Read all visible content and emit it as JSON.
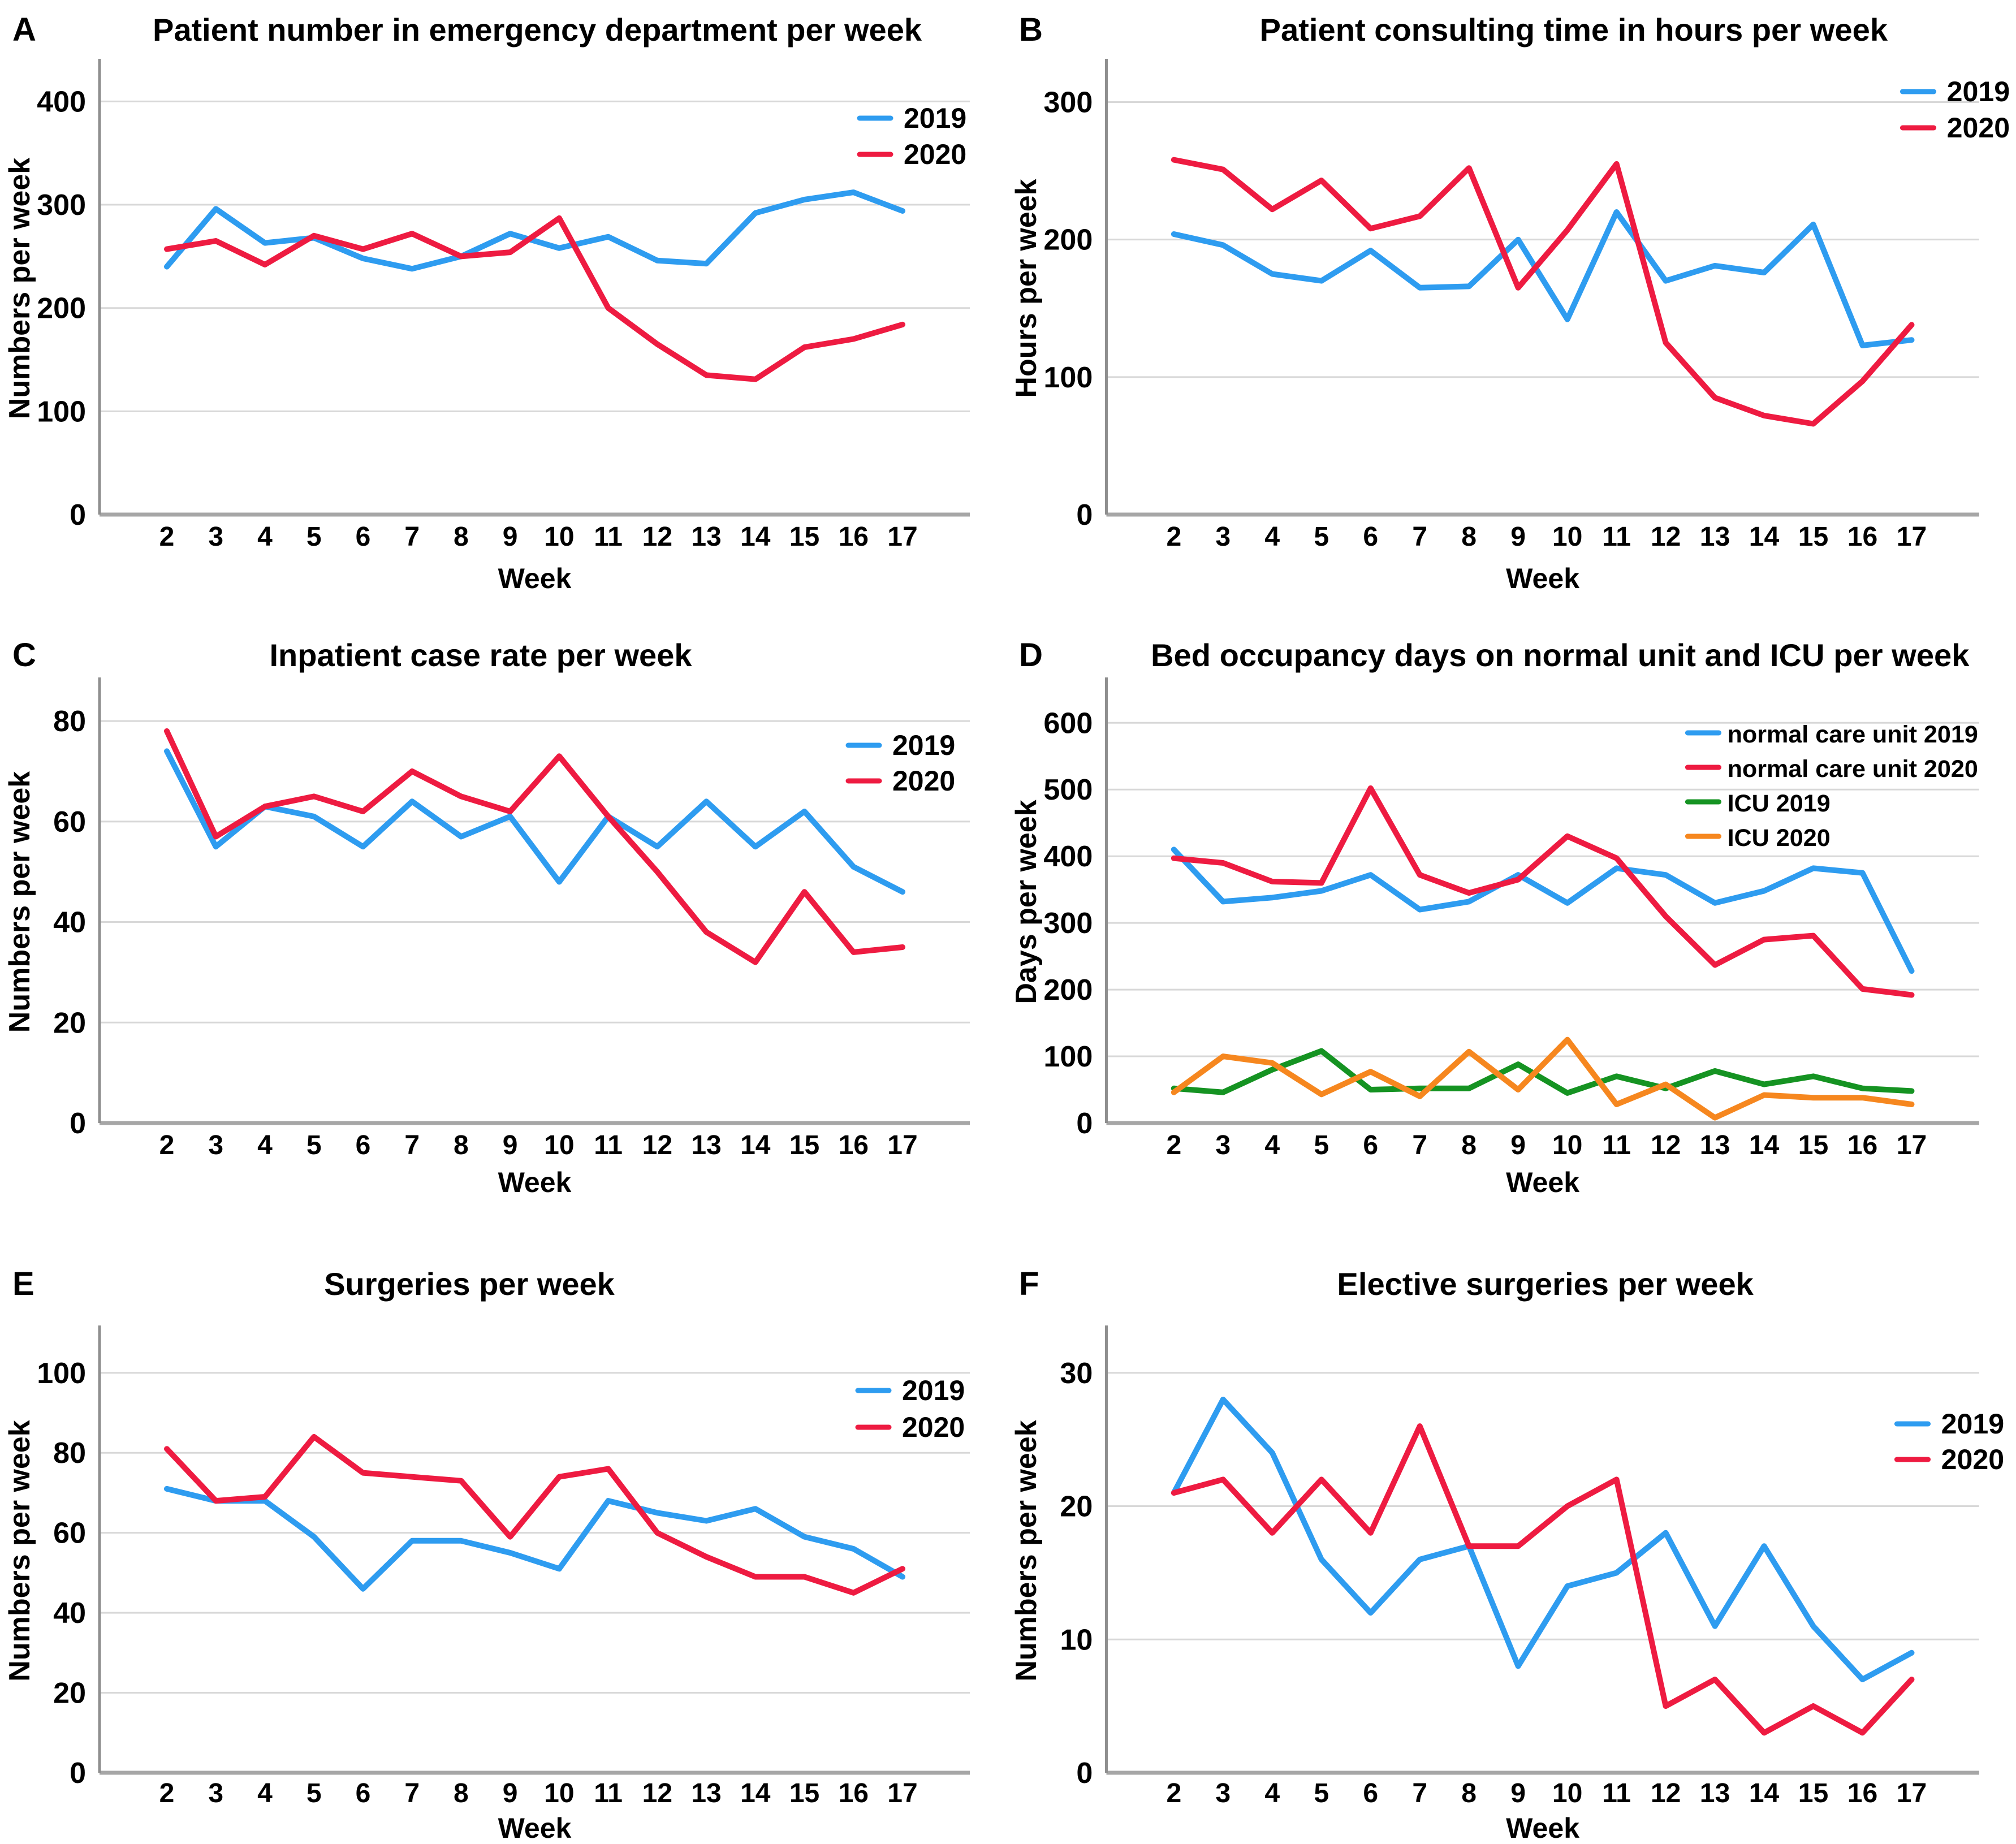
{
  "figure": {
    "description": "Six-panel line chart figure comparing weekly hospital activity in 2019 vs 2020",
    "panel_labels": [
      "A",
      "B",
      "C",
      "D",
      "E",
      "F"
    ]
  },
  "colors": {
    "blue_2019": "#2e9cf0",
    "red_2020": "#ee1b41",
    "green_icu_2019": "#159322",
    "orange_icu_2020": "#f6871f",
    "gridline": "#d8d8d8",
    "x_axis": "#a6a6a6",
    "y_axis": "#8f8f8f",
    "text": "#000000"
  },
  "chart_data": [
    {
      "panel": "A",
      "type": "line",
      "title": "Patient number in emergency department per week",
      "xlabel": "Week",
      "ylabel": "Numbers per week",
      "x": [
        2,
        3,
        4,
        5,
        6,
        7,
        8,
        9,
        10,
        11,
        12,
        13,
        14,
        15,
        16,
        17
      ],
      "yticks": [
        0,
        100,
        200,
        300,
        400
      ],
      "ylim": [
        0,
        438
      ],
      "grid": "horizontal",
      "legend_position": "top-right",
      "series": [
        {
          "name": "2019",
          "color": "#2e9cf0",
          "values": [
            240,
            296,
            263,
            268,
            248,
            238,
            250,
            272,
            258,
            269,
            246,
            243,
            292,
            305,
            312,
            294
          ]
        },
        {
          "name": "2020",
          "color": "#ee1b41",
          "values": [
            257,
            265,
            242,
            270,
            257,
            272,
            250,
            254,
            287,
            200,
            165,
            135,
            131,
            162,
            170,
            184
          ]
        }
      ]
    },
    {
      "panel": "B",
      "type": "line",
      "title": "Patient consulting time in hours per week",
      "xlabel": "Week",
      "ylabel": "Hours per week",
      "x": [
        2,
        3,
        4,
        5,
        6,
        7,
        8,
        9,
        10,
        11,
        12,
        13,
        14,
        15,
        16,
        17
      ],
      "yticks": [
        0,
        100,
        200,
        300
      ],
      "ylim": [
        0,
        329
      ],
      "grid": "horizontal",
      "legend_position": "top-right",
      "series": [
        {
          "name": "2019",
          "color": "#2e9cf0",
          "values": [
            204,
            196,
            175,
            170,
            192,
            165,
            166,
            200,
            142,
            220,
            170,
            181,
            176,
            211,
            123,
            127
          ]
        },
        {
          "name": "2020",
          "color": "#ee1b41",
          "values": [
            258,
            251,
            222,
            243,
            208,
            217,
            252,
            165,
            207,
            255,
            125,
            85,
            72,
            66,
            97,
            138
          ]
        }
      ]
    },
    {
      "panel": "C",
      "type": "line",
      "title": "Inpatient case rate per week",
      "xlabel": "Week",
      "ylabel": "Numbers per week",
      "x": [
        2,
        3,
        4,
        5,
        6,
        7,
        8,
        9,
        10,
        11,
        12,
        13,
        14,
        15,
        16,
        17
      ],
      "yticks": [
        0,
        20,
        40,
        60,
        80
      ],
      "ylim": [
        0,
        88
      ],
      "grid": "horizontal",
      "legend_position": "top-right",
      "series": [
        {
          "name": "2019",
          "color": "#2e9cf0",
          "values": [
            74,
            55,
            63,
            61,
            55,
            64,
            57,
            61,
            48,
            61,
            55,
            64,
            55,
            62,
            51,
            46
          ]
        },
        {
          "name": "2020",
          "color": "#ee1b41",
          "values": [
            78,
            57,
            63,
            65,
            62,
            70,
            65,
            62,
            73,
            61,
            50,
            38,
            32,
            46,
            34,
            35
          ]
        }
      ]
    },
    {
      "panel": "D",
      "type": "line",
      "title": "Bed occupancy days on normal unit and ICU per week",
      "xlabel": "Week",
      "ylabel": "Days per week",
      "x": [
        2,
        3,
        4,
        5,
        6,
        7,
        8,
        9,
        10,
        11,
        12,
        13,
        14,
        15,
        16,
        17
      ],
      "yticks": [
        0,
        100,
        200,
        300,
        400,
        500,
        600
      ],
      "ylim": [
        0,
        663
      ],
      "grid": "horizontal",
      "legend_position": "top-right",
      "series": [
        {
          "name": "normal care unit 2019",
          "color": "#2e9cf0",
          "values": [
            410,
            332,
            338,
            348,
            372,
            320,
            332,
            372,
            330,
            382,
            372,
            330,
            348,
            382,
            375,
            228
          ]
        },
        {
          "name": "normal care unit 2020",
          "color": "#ee1b41",
          "values": [
            397,
            390,
            362,
            360,
            502,
            372,
            345,
            365,
            430,
            397,
            310,
            237,
            275,
            281,
            201,
            192
          ]
        },
        {
          "name": "ICU 2019",
          "color": "#159322",
          "values": [
            52,
            46,
            80,
            108,
            50,
            52,
            52,
            88,
            45,
            70,
            52,
            78,
            58,
            70,
            52,
            48
          ]
        },
        {
          "name": "ICU 2020",
          "color": "#f6871f",
          "values": [
            46,
            100,
            90,
            43,
            77,
            40,
            107,
            50,
            125,
            28,
            58,
            8,
            42,
            38,
            38,
            28
          ]
        }
      ]
    },
    {
      "panel": "E",
      "type": "line",
      "title": "Surgeries per week",
      "xlabel": "Week",
      "ylabel": "Numbers per week",
      "x": [
        2,
        3,
        4,
        5,
        6,
        7,
        8,
        9,
        10,
        11,
        12,
        13,
        14,
        15,
        16,
        17
      ],
      "yticks": [
        0,
        20,
        40,
        60,
        80,
        100
      ],
      "ylim": [
        0,
        111
      ],
      "grid": "horizontal",
      "legend_position": "top-right",
      "series": [
        {
          "name": "2019",
          "color": "#2e9cf0",
          "values": [
            71,
            68,
            68,
            59,
            46,
            58,
            58,
            55,
            51,
            68,
            65,
            63,
            66,
            59,
            56,
            49
          ]
        },
        {
          "name": "2020",
          "color": "#ee1b41",
          "values": [
            81,
            68,
            69,
            84,
            75,
            74,
            73,
            59,
            74,
            76,
            60,
            54,
            49,
            49,
            45,
            51
          ]
        }
      ]
    },
    {
      "panel": "F",
      "type": "line",
      "title": "Elective surgeries per week",
      "xlabel": "Week",
      "ylabel": "Numbers per week",
      "x": [
        2,
        3,
        4,
        5,
        6,
        7,
        8,
        9,
        10,
        11,
        12,
        13,
        14,
        15,
        16,
        17
      ],
      "yticks": [
        0,
        10,
        20,
        30
      ],
      "ylim": [
        0,
        33.3
      ],
      "grid": "horizontal",
      "legend_position": "top-right",
      "series": [
        {
          "name": "2019",
          "color": "#2e9cf0",
          "values": [
            21,
            28,
            24,
            16,
            12,
            16,
            17,
            8,
            14,
            15,
            18,
            11,
            17,
            11,
            7,
            9
          ]
        },
        {
          "name": "2020",
          "color": "#ee1b41",
          "values": [
            21,
            22,
            18,
            22,
            18,
            26,
            17,
            17,
            20,
            22,
            5,
            7,
            3,
            5,
            3,
            7
          ]
        }
      ]
    }
  ]
}
